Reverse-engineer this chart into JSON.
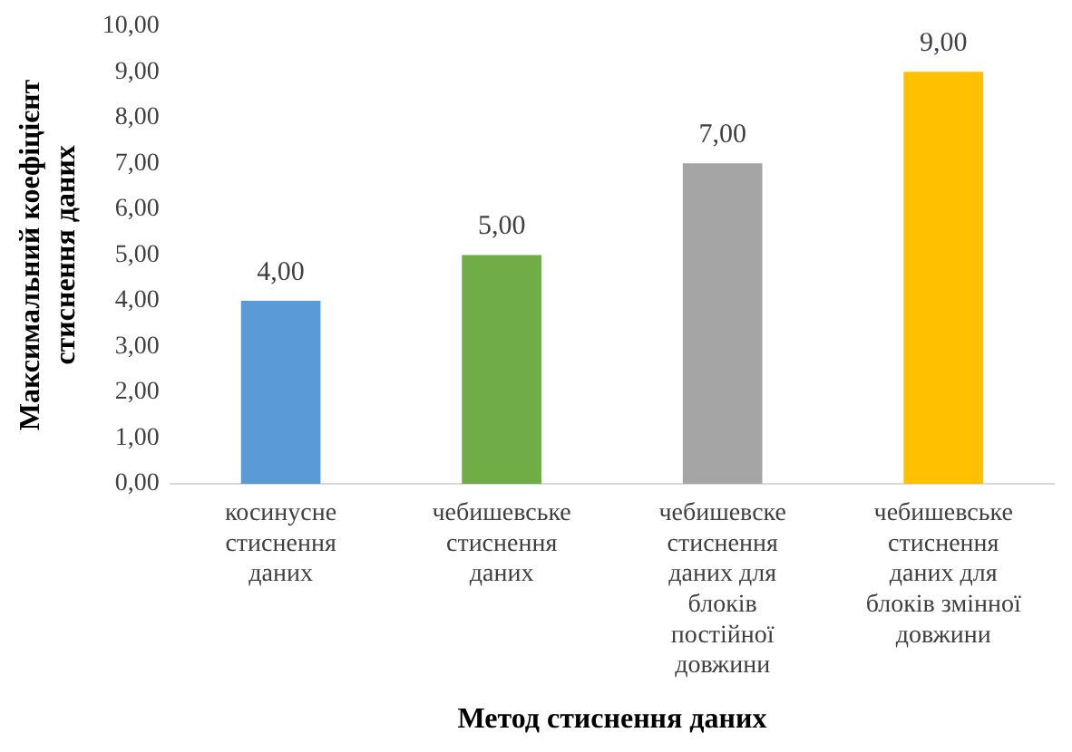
{
  "chart_data": {
    "type": "bar",
    "xlabel": "Метод стиснення даних",
    "ylabel": "Максимальний коефіцієнт стиснення даних",
    "categories": [
      "косинусне стиснення даних",
      "чебишевське стиснення даних",
      "чебишевске стиснення даних для блоків постійної довжини",
      "чебишевське стиснення даних для блоків змінної довжини"
    ],
    "values": [
      4,
      5,
      7,
      9
    ],
    "value_labels": [
      "4,00",
      "5,00",
      "7,00",
      "9,00"
    ],
    "colors": [
      "#5b9bd5",
      "#70ad47",
      "#a5a5a5",
      "#ffc000"
    ],
    "ylim": [
      0,
      10
    ],
    "yticks": [
      {
        "value": 0,
        "label": "0,00"
      },
      {
        "value": 1,
        "label": "1,00"
      },
      {
        "value": 2,
        "label": "2,00"
      },
      {
        "value": 3,
        "label": "3,00"
      },
      {
        "value": 4,
        "label": "4,00"
      },
      {
        "value": 5,
        "label": "5,00"
      },
      {
        "value": 6,
        "label": "6,00"
      },
      {
        "value": 7,
        "label": "7,00"
      },
      {
        "value": 8,
        "label": "8,00"
      },
      {
        "value": 9,
        "label": "9,00"
      },
      {
        "value": 10,
        "label": "10,00"
      }
    ],
    "grid": false,
    "legend": false
  }
}
